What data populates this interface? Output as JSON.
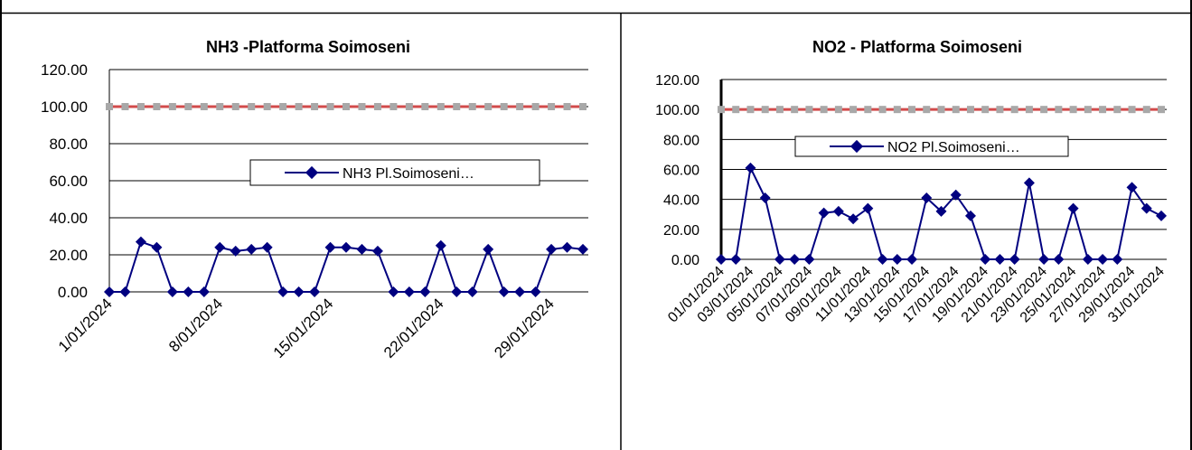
{
  "chart_data": [
    {
      "type": "line",
      "title": "NH3 -Platforma Soimoseni",
      "xlabel": "",
      "ylabel": "",
      "ylim": [
        0,
        120
      ],
      "yticks": [
        "0.00",
        "20.00",
        "40.00",
        "60.00",
        "80.00",
        "100.00",
        "120.00"
      ],
      "x": [
        "1/01/2024",
        "2/01/2024",
        "3/01/2024",
        "4/01/2024",
        "5/01/2024",
        "6/01/2024",
        "7/01/2024",
        "8/01/2024",
        "9/01/2024",
        "10/01/2024",
        "11/01/2024",
        "12/01/2024",
        "13/01/2024",
        "14/01/2024",
        "15/01/2024",
        "16/01/2024",
        "17/01/2024",
        "18/01/2024",
        "19/01/2024",
        "20/01/2024",
        "21/01/2024",
        "22/01/2024",
        "23/01/2024",
        "24/01/2024",
        "25/01/2024",
        "26/01/2024",
        "27/01/2024",
        "28/01/2024",
        "29/01/2024",
        "30/01/2024",
        "31/01/2024"
      ],
      "xtick_labels": [
        "1/01/2024",
        "8/01/2024",
        "15/01/2024",
        "22/01/2024",
        "29/01/2024"
      ],
      "xtick_every": 7,
      "limit_value": 100,
      "grid": true,
      "legend_placement": "center-right",
      "series": [
        {
          "name": "NH3 Pl.Soimoseni…",
          "color": "#000080",
          "values": [
            0,
            0,
            27,
            24,
            0,
            0,
            0,
            24,
            22,
            23,
            24,
            0,
            0,
            0,
            24,
            24,
            23,
            22,
            0,
            0,
            0,
            25,
            0,
            0,
            23,
            0,
            0,
            0,
            23,
            24,
            23
          ]
        }
      ],
      "limit_color": "#D24B4B"
    },
    {
      "type": "line",
      "title": "NO2 - Platforma Soimoseni",
      "xlabel": "",
      "ylabel": "",
      "ylim": [
        0,
        120
      ],
      "yticks": [
        "0.00",
        "20.00",
        "40.00",
        "60.00",
        "80.00",
        "100.00",
        "120.00"
      ],
      "x": [
        "01/01/2024",
        "02/01/2024",
        "03/01/2024",
        "04/01/2024",
        "05/01/2024",
        "06/01/2024",
        "07/01/2024",
        "08/01/2024",
        "09/01/2024",
        "10/01/2024",
        "11/01/2024",
        "12/01/2024",
        "13/01/2024",
        "14/01/2024",
        "15/01/2024",
        "16/01/2024",
        "17/01/2024",
        "18/01/2024",
        "19/01/2024",
        "20/01/2024",
        "21/01/2024",
        "22/01/2024",
        "23/01/2024",
        "24/01/2024",
        "25/01/2024",
        "26/01/2024",
        "27/01/2024",
        "28/01/2024",
        "29/01/2024",
        "30/01/2024",
        "31/01/2024"
      ],
      "xtick_labels": [
        "01/01/2024",
        "03/01/2024",
        "05/01/2024",
        "07/01/2024",
        "09/01/2024",
        "11/01/2024",
        "13/01/2024",
        "15/01/2024",
        "17/01/2024",
        "19/01/2024",
        "21/01/2024",
        "23/01/2024",
        "25/01/2024",
        "27/01/2024",
        "29/01/2024",
        "31/01/2024"
      ],
      "xtick_every": 2,
      "limit_value": 100,
      "grid": true,
      "legend_placement": "top-center",
      "series": [
        {
          "name": "NO2 Pl.Soimoseni…",
          "color": "#000080",
          "values": [
            0,
            0,
            61,
            41,
            0,
            0,
            0,
            31,
            32,
            27,
            34,
            0,
            0,
            0,
            41,
            32,
            43,
            29,
            0,
            0,
            0,
            51,
            0,
            0,
            34,
            0,
            0,
            0,
            48,
            34,
            29
          ]
        }
      ],
      "limit_color": "#D24B4B"
    }
  ]
}
